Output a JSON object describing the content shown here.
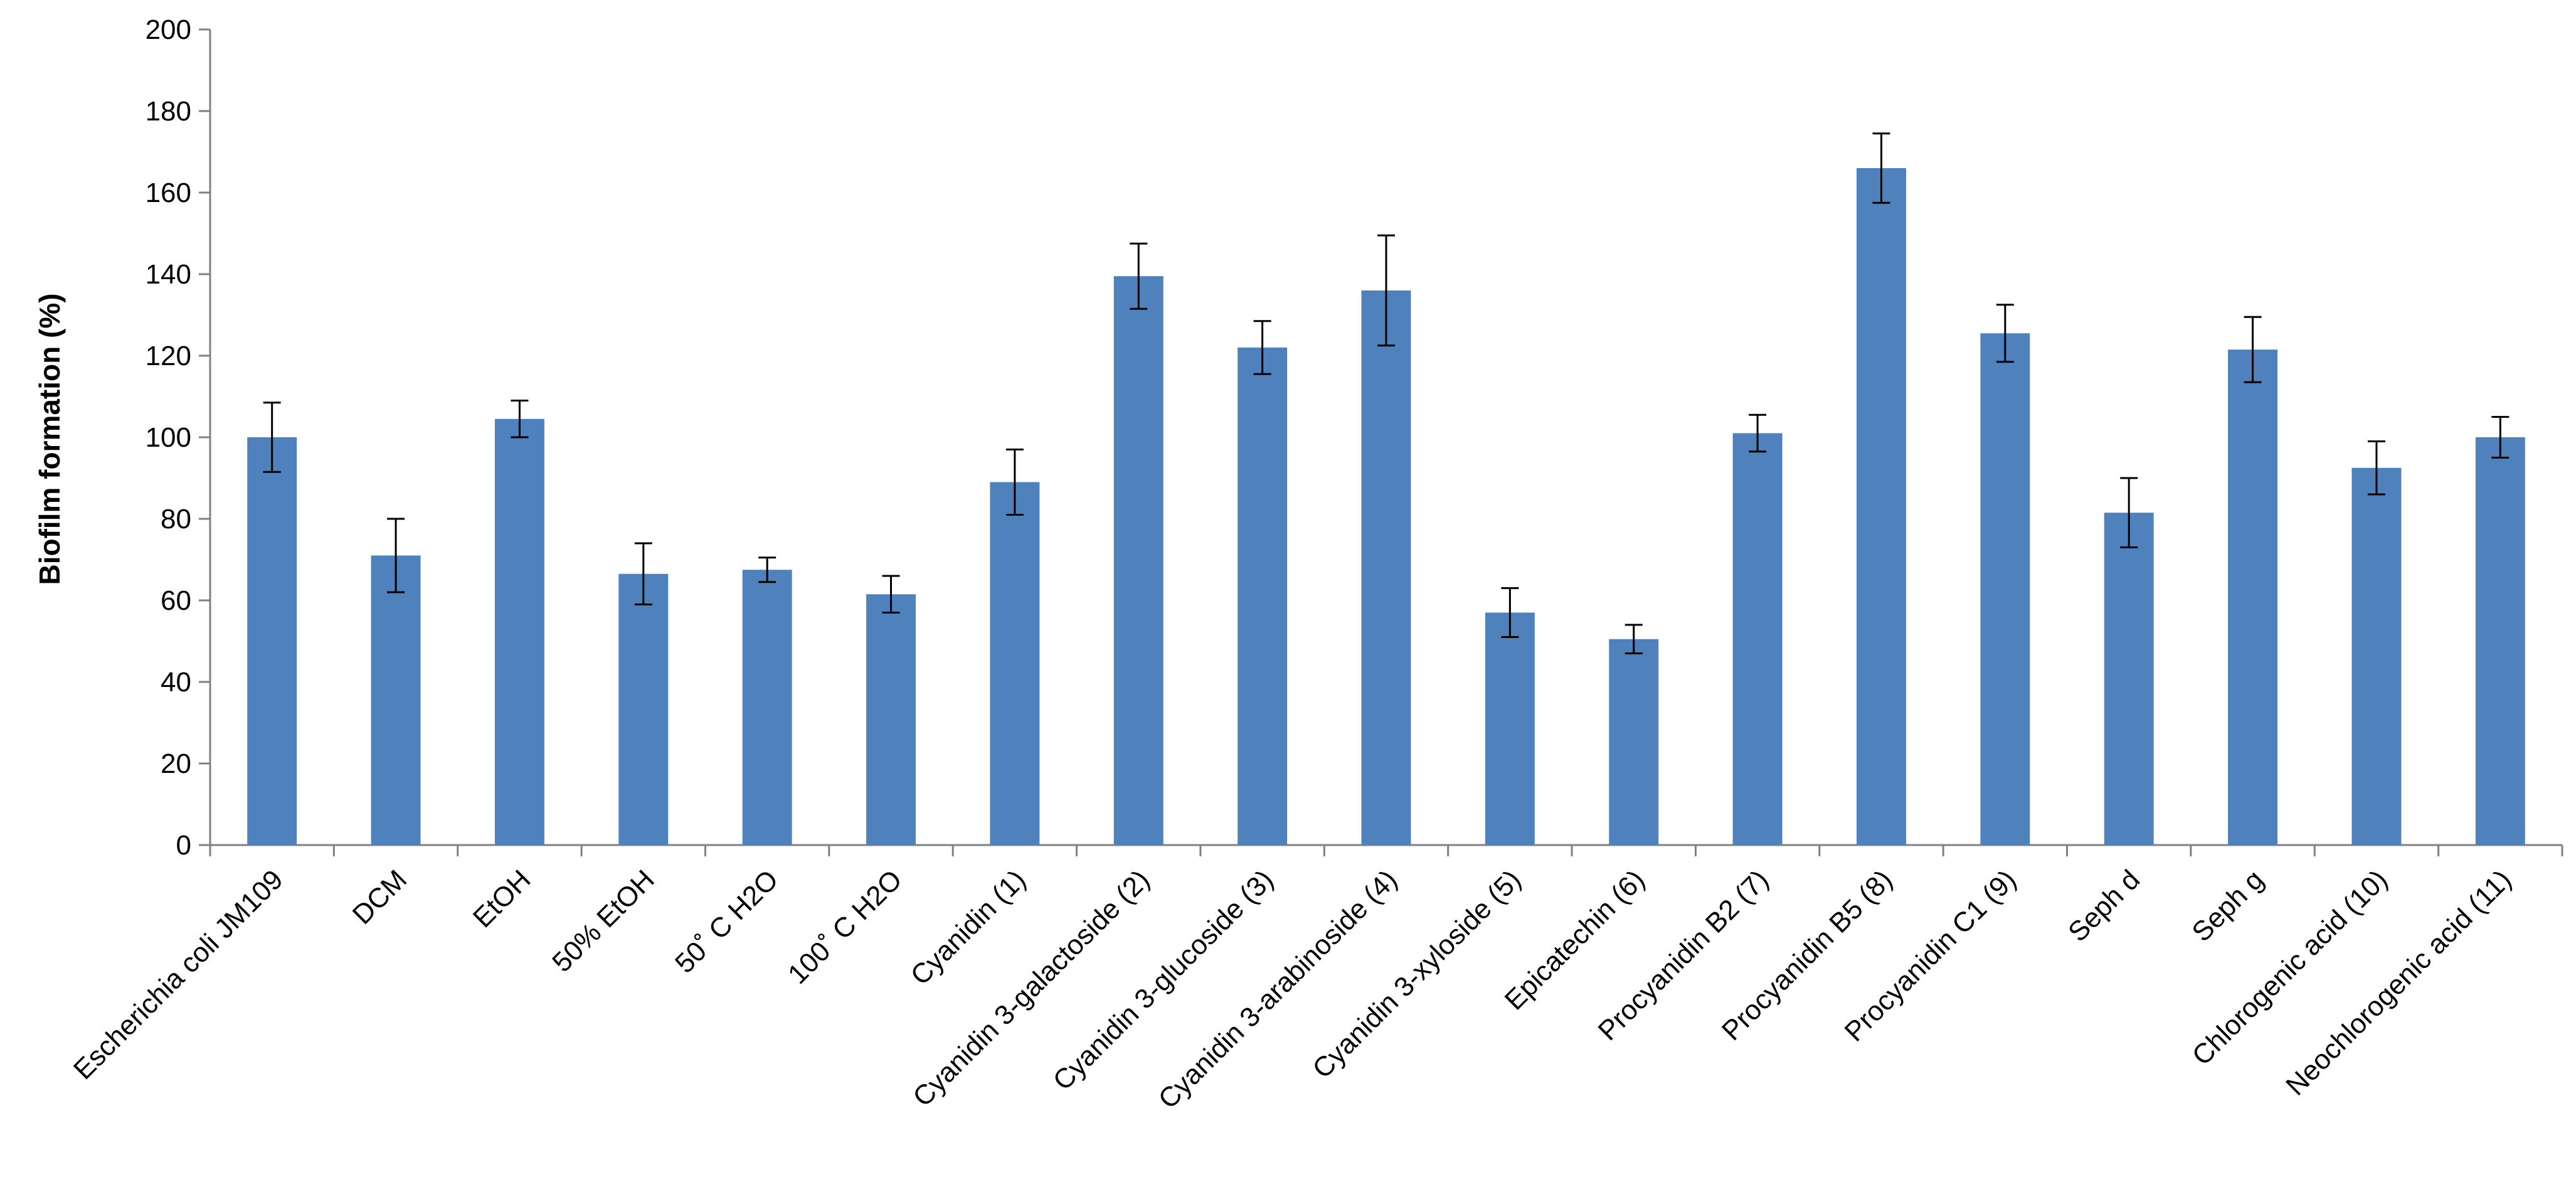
{
  "chart_data": {
    "type": "bar",
    "title": "",
    "xlabel": "",
    "ylabel": "Biofilm formation (%)",
    "ylim": [
      0,
      200
    ],
    "yticks": [
      0,
      20,
      40,
      60,
      80,
      100,
      120,
      140,
      160,
      180,
      200
    ],
    "grid": false,
    "legend": "none",
    "bar_color": "#4F81BD",
    "categories": [
      "Escherichia coli JM109",
      "DCM",
      "EtOH",
      "50% EtOH",
      "50˚ C H2O",
      "100˚ C H2O",
      "Cyanidin (1)",
      "Cyanidin 3-galactoside (2)",
      "Cyanidin 3-glucoside (3)",
      "Cyanidin 3-arabinoside (4)",
      "Cyanidin 3-xyloside (5)",
      "Epicatechin (6)",
      "Procyanidin B2 (7)",
      "Procyanidin B5 (8)",
      "Procyanidin C1 (9)",
      "Seph d",
      "Seph g",
      "Chlorogenic acid (10)",
      "Neochlorogenic acid (11)"
    ],
    "values": [
      100,
      71,
      104.5,
      66.5,
      67.5,
      61.5,
      89,
      139.5,
      122,
      136,
      57,
      50.5,
      101,
      166,
      125.5,
      81.5,
      121.5,
      92.5,
      100
    ],
    "errors": [
      8.5,
      9,
      4.5,
      7.5,
      3,
      4.5,
      8,
      8,
      6.5,
      13.5,
      6,
      3.5,
      4.5,
      8.5,
      7,
      8.5,
      8,
      6.5,
      5
    ]
  }
}
